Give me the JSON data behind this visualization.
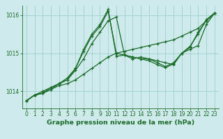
{
  "title": "Graphe pression niveau de la mer (hPa)",
  "bg_color": "#ceeaea",
  "grid_color": "#9ecece",
  "line_color": "#1a6b2a",
  "axis_color": "#1a6b2a",
  "xlim": [
    -0.5,
    23.5
  ],
  "ylim": [
    1013.55,
    1016.25
  ],
  "xticks": [
    0,
    1,
    2,
    3,
    4,
    5,
    6,
    7,
    8,
    9,
    10,
    11,
    12,
    13,
    14,
    15,
    16,
    17,
    18,
    19,
    20,
    21,
    22,
    23
  ],
  "yticks": [
    1014,
    1015,
    1016
  ],
  "series": [
    [
      1013.75,
      1013.9,
      1013.95,
      1014.05,
      1014.15,
      1014.2,
      1014.3,
      1014.45,
      1014.6,
      1014.75,
      1014.9,
      1015.0,
      1015.05,
      1015.1,
      1015.15,
      1015.2,
      1015.25,
      1015.3,
      1015.35,
      1015.45,
      1015.55,
      1015.65,
      1015.85,
      1016.05
    ],
    [
      1013.75,
      1013.9,
      1013.95,
      1014.1,
      1014.2,
      1014.3,
      1014.55,
      1014.85,
      1015.25,
      1015.55,
      1015.85,
      1015.95,
      1014.95,
      1014.85,
      1014.9,
      1014.85,
      1014.8,
      1014.75,
      1014.7,
      1015.0,
      1015.1,
      1015.2,
      1015.75,
      1016.05
    ],
    [
      1013.75,
      1013.9,
      1013.95,
      1014.05,
      1014.2,
      1014.3,
      1014.6,
      1015.05,
      1015.45,
      1015.7,
      1016.1,
      1015.0,
      1014.95,
      1014.9,
      1014.85,
      1014.85,
      1014.75,
      1014.65,
      1014.75,
      1015.0,
      1015.15,
      1015.55,
      1015.85,
      1016.05
    ],
    [
      1013.75,
      1013.9,
      1014.0,
      1014.1,
      1014.2,
      1014.35,
      1014.6,
      1015.1,
      1015.5,
      1015.75,
      1016.15,
      1014.92,
      1014.95,
      1014.9,
      1014.85,
      1014.8,
      1014.7,
      1014.62,
      1014.72,
      1015.0,
      1015.18,
      1015.5,
      1015.88,
      1016.05
    ]
  ],
  "tick_labelsize": 5.5,
  "xlabel_fontsize": 6.8,
  "marker": "+",
  "markersize": 3.5,
  "linewidth": 0.9
}
